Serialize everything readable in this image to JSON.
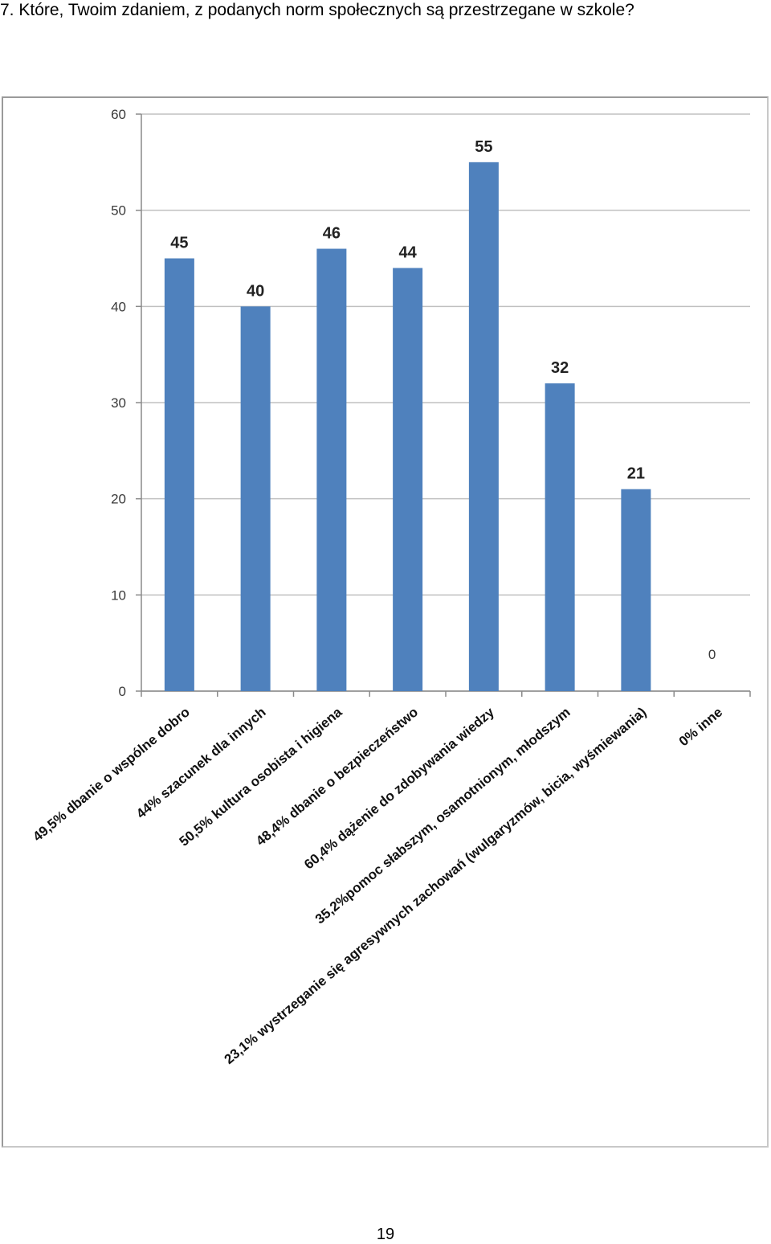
{
  "page": {
    "question": "7. Które, Twoim zdaniem, z podanych norm społecznych są przestrzegane w szkole?",
    "page_number": "19"
  },
  "chart_data": {
    "type": "bar",
    "categories": [
      "49,5% dbanie o wspólne dobro",
      "44% szacunek dla innych",
      "50,5% kultura osobista i higiena",
      "48,4% dbanie o bezpieczeństwo",
      "60,4% dążenie do zdobywania wiedzy",
      "35,2%pomoc słabszym, osamotnionym, młodszym",
      "23,1% wystrzeganie się agresywnych zachowań (wulgaryzmów, bicia, wyśmiewania)",
      "0% inne"
    ],
    "values": [
      45,
      40,
      46,
      44,
      55,
      32,
      21,
      0
    ],
    "ylim": [
      0,
      60
    ],
    "yticks": [
      0,
      10,
      20,
      30,
      40,
      50,
      60
    ],
    "grid": true,
    "legend": "none",
    "bar_color": "#4f81bd",
    "grid_color": "#c0c0c0"
  }
}
